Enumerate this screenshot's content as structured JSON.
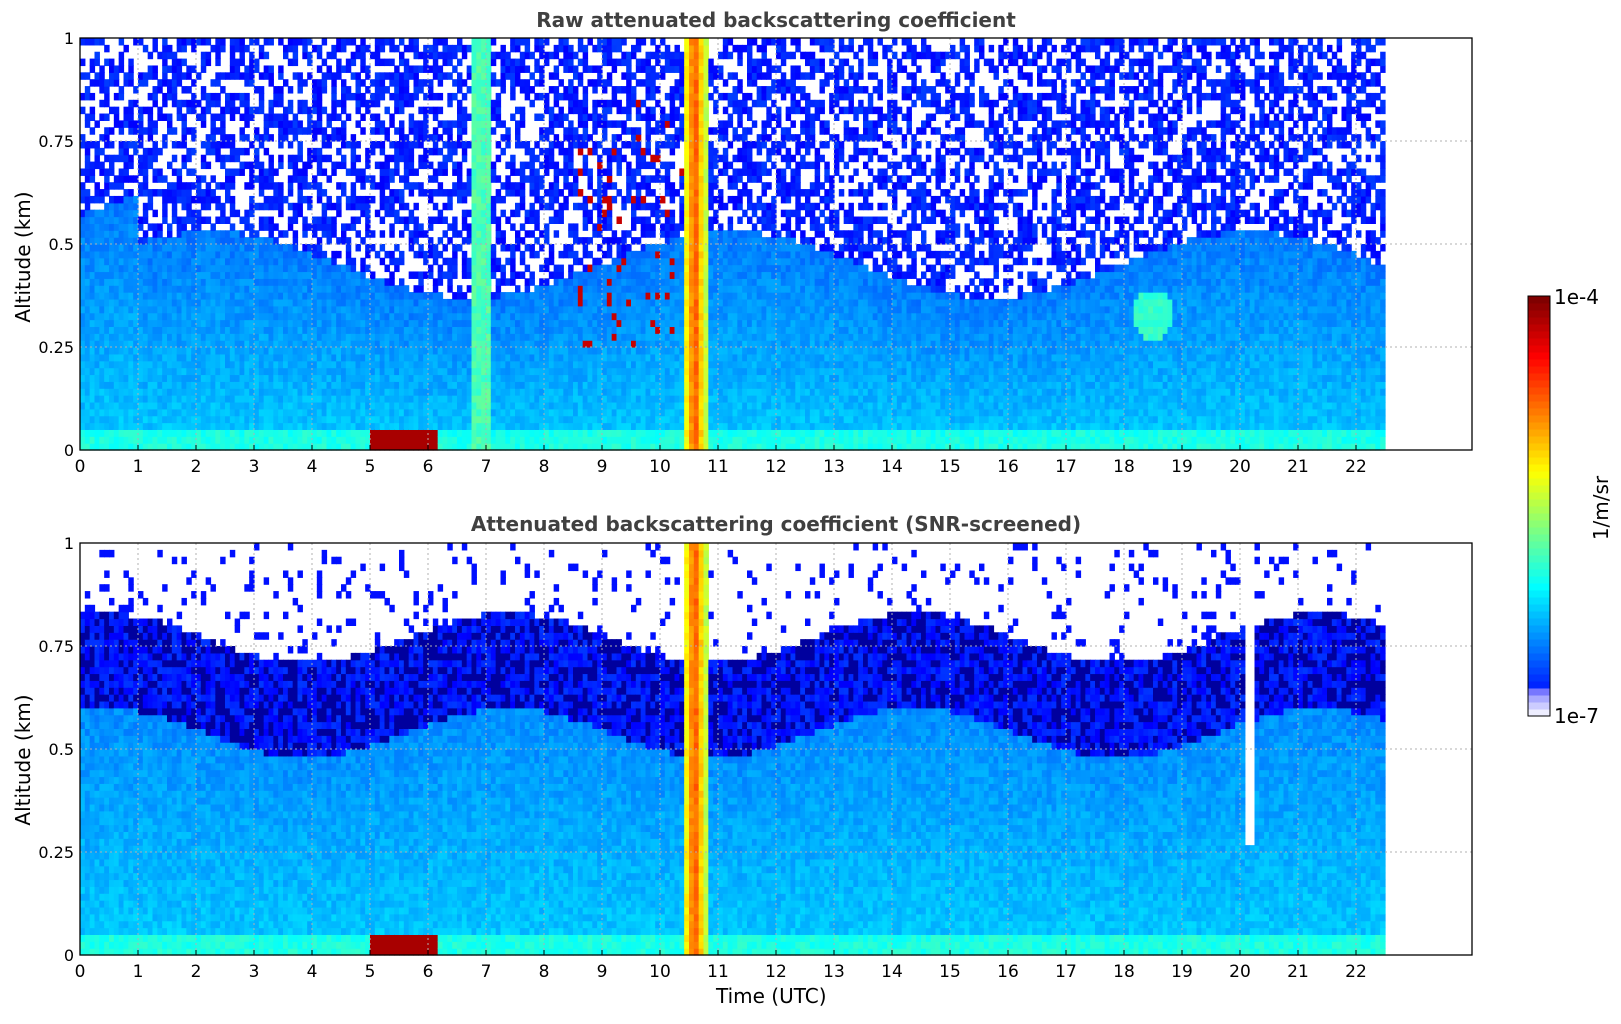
{
  "chart_data": [
    {
      "type": "heatmap",
      "title": "Raw attenuated backscattering coefficient",
      "xlabel": "",
      "ylabel": "Altitude (km)",
      "xlim": [
        0,
        24
      ],
      "ylim": [
        0,
        1
      ],
      "xticks": [
        "0",
        "1",
        "2",
        "3",
        "4",
        "5",
        "6",
        "7",
        "8",
        "9",
        "10",
        "11",
        "12",
        "13",
        "14",
        "15",
        "16",
        "17",
        "18",
        "19",
        "20",
        "21",
        "22"
      ],
      "yticks": [
        "0",
        "0.25",
        "0.5",
        "0.75",
        "1"
      ],
      "grid": true,
      "data_end_time": 22.5,
      "features": [
        {
          "kind": "aerosol_layer_top",
          "time_start": 0,
          "time_end": 22.5,
          "altitude": 0.45
        },
        {
          "kind": "low_cloud",
          "time_start": 5.0,
          "time_end": 6.2,
          "altitude_bottom": 0.0,
          "altitude_top": 0.05
        },
        {
          "kind": "vertical_streak",
          "time": 6.9
        },
        {
          "kind": "precipitation_column",
          "time_start": 10.4,
          "time_end": 10.8
        },
        {
          "kind": "cloud_filaments",
          "time_start": 8.5,
          "time_end": 10.4,
          "altitude_bottom": 0.25,
          "altitude_top": 0.85
        },
        {
          "kind": "isolated_plume",
          "time": 18.5,
          "altitude": 0.33
        }
      ]
    },
    {
      "type": "heatmap",
      "title": "Attenuated backscattering coefficient (SNR-screened)",
      "xlabel": "Time (UTC)",
      "ylabel": "Altitude (km)",
      "xlim": [
        0,
        24
      ],
      "ylim": [
        0,
        1
      ],
      "xticks": [
        "0",
        "1",
        "2",
        "3",
        "4",
        "5",
        "6",
        "7",
        "8",
        "9",
        "10",
        "11",
        "12",
        "13",
        "14",
        "15",
        "16",
        "17",
        "18",
        "19",
        "20",
        "21",
        "22"
      ],
      "yticks": [
        "0",
        "0.25",
        "0.5",
        "0.75",
        "1"
      ],
      "grid": true,
      "data_end_time": 22.5,
      "features": [
        {
          "kind": "screened_top",
          "time_start": 0,
          "time_end": 22.5,
          "altitude": 0.72
        },
        {
          "kind": "low_cloud",
          "time_start": 5.0,
          "time_end": 6.2,
          "altitude_bottom": 0.0,
          "altitude_top": 0.05
        },
        {
          "kind": "precipitation_column",
          "time_start": 10.4,
          "time_end": 10.8
        },
        {
          "kind": "gap_notch",
          "time": 20.2,
          "altitude_bottom": 0.27
        }
      ]
    }
  ],
  "colorbar": {
    "label": "1/m/sr",
    "max_label": "1e-4",
    "min_label": "1e-7",
    "colormap": "jet",
    "scale": "log",
    "range": [
      1e-07,
      0.0001
    ]
  }
}
